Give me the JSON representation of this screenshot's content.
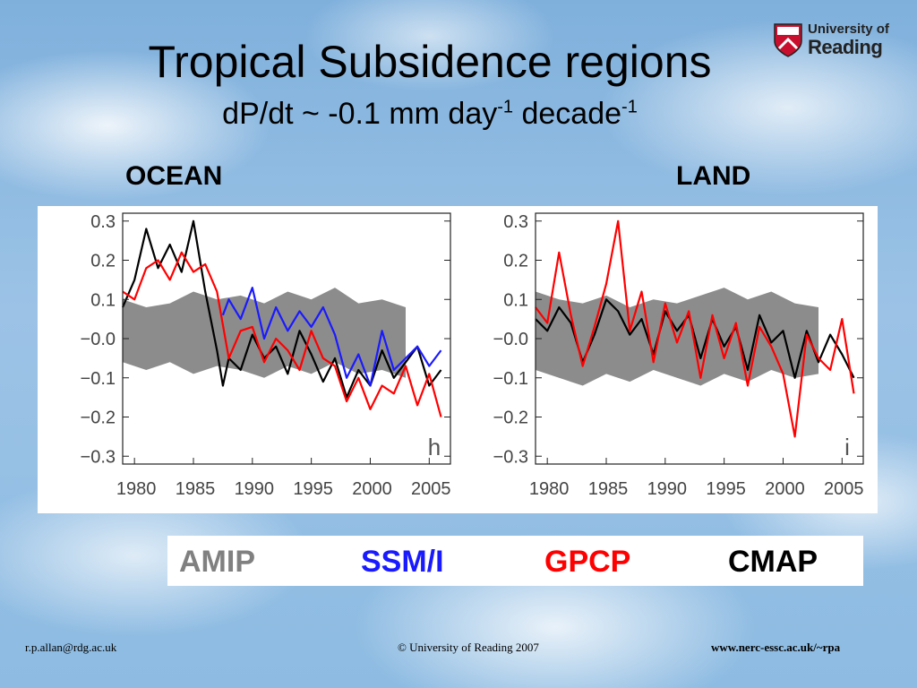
{
  "slide": {
    "title": "Tropical Subsidence regions",
    "subtitle_main": "dP/dt ~ -0.1 mm day",
    "subtitle_exp1": "-1",
    "subtitle_mid": " decade",
    "subtitle_exp2": "-1",
    "logo_line1": "University of",
    "logo_line2": "Reading",
    "footer_left": "r.p.allan@rdg.ac.uk",
    "footer_center": "© University of Reading 2007",
    "footer_right": "www.nerc-essc.ac.uk/~rpa"
  },
  "legend": {
    "items": [
      {
        "label": "AMIP",
        "color": "#808080"
      },
      {
        "label": "SSM/I",
        "color": "#1a1aff"
      },
      {
        "label": "GPCP",
        "color": "#ff0000"
      },
      {
        "label": "CMAP",
        "color": "#000000"
      }
    ]
  },
  "chart_data": [
    {
      "type": "line",
      "region_label": "OCEAN",
      "panel_letter": "h",
      "xlim": [
        1979,
        2006.8
      ],
      "ylim": [
        -0.32,
        0.32
      ],
      "xticks": [
        "1980",
        "1985",
        "1990",
        "1995",
        "2000",
        "2005"
      ],
      "yticks": [
        "0.3",
        "0.2",
        "0.1",
        "−0.0",
        "−0.1",
        "−0.2",
        "−0.3"
      ],
      "ytick_values": [
        0.3,
        0.2,
        0.1,
        0.0,
        -0.1,
        -0.2,
        -0.3
      ],
      "xtick_values": [
        1980,
        1985,
        1990,
        1995,
        2000,
        2005
      ],
      "series": [
        {
          "name": "AMIP",
          "kind": "band",
          "x": [
            1979,
            1981,
            1983,
            1985,
            1987,
            1989,
            1991,
            1993,
            1995,
            1997,
            1999,
            2001,
            2003
          ],
          "upper": [
            0.1,
            0.08,
            0.09,
            0.12,
            0.1,
            0.11,
            0.09,
            0.12,
            0.1,
            0.13,
            0.09,
            0.1,
            0.08
          ],
          "lower": [
            -0.06,
            -0.08,
            -0.06,
            -0.09,
            -0.07,
            -0.08,
            -0.1,
            -0.07,
            -0.09,
            -0.06,
            -0.09,
            -0.08,
            -0.1
          ]
        },
        {
          "name": "CMAP",
          "x": [
            1979,
            1980,
            1981,
            1982,
            1983,
            1984,
            1985,
            1986,
            1987,
            1987.5,
            1988,
            1989,
            1990,
            1991,
            1992,
            1993,
            1994,
            1995,
            1996,
            1997,
            1998,
            1999,
            2000,
            2001,
            2002,
            2003,
            2004,
            2005,
            2006
          ],
          "y": [
            0.08,
            0.15,
            0.28,
            0.18,
            0.24,
            0.17,
            0.3,
            0.12,
            -0.03,
            -0.12,
            -0.05,
            -0.08,
            0.01,
            -0.05,
            -0.02,
            -0.09,
            0.02,
            -0.04,
            -0.11,
            -0.05,
            -0.15,
            -0.08,
            -0.12,
            -0.03,
            -0.1,
            -0.06,
            -0.02,
            -0.12,
            -0.08
          ]
        },
        {
          "name": "GPCP",
          "x": [
            1979,
            1980,
            1981,
            1982,
            1983,
            1984,
            1985,
            1986,
            1987,
            1988,
            1989,
            1990,
            1991,
            1992,
            1993,
            1994,
            1995,
            1996,
            1997,
            1998,
            1999,
            2000,
            2001,
            2002,
            2003,
            2004,
            2005,
            2006
          ],
          "y": [
            0.12,
            0.1,
            0.18,
            0.2,
            0.15,
            0.22,
            0.17,
            0.19,
            0.12,
            -0.05,
            0.02,
            0.03,
            -0.06,
            0.0,
            -0.03,
            -0.08,
            0.02,
            -0.05,
            -0.07,
            -0.16,
            -0.1,
            -0.18,
            -0.12,
            -0.14,
            -0.07,
            -0.17,
            -0.09,
            -0.2
          ]
        },
        {
          "name": "SSM/I",
          "x": [
            1987.5,
            1988,
            1989,
            1990,
            1991,
            1992,
            1993,
            1994,
            1995,
            1996,
            1997,
            1998,
            1999,
            2000,
            2001,
            2002,
            2003,
            2004,
            2005,
            2006
          ],
          "y": [
            0.06,
            0.1,
            0.05,
            0.13,
            0.0,
            0.08,
            0.02,
            0.07,
            0.03,
            0.08,
            0.01,
            -0.1,
            -0.04,
            -0.12,
            0.02,
            -0.08,
            -0.05,
            -0.02,
            -0.07,
            -0.03
          ]
        }
      ]
    },
    {
      "type": "line",
      "region_label": "LAND",
      "panel_letter": "i",
      "xlim": [
        1979,
        2006.8
      ],
      "ylim": [
        -0.32,
        0.32
      ],
      "xticks": [
        "1980",
        "1985",
        "1990",
        "1995",
        "2000",
        "2005"
      ],
      "yticks": [
        "0.3",
        "0.2",
        "0.1",
        "−0.0",
        "−0.1",
        "−0.2",
        "−0.3"
      ],
      "ytick_values": [
        0.3,
        0.2,
        0.1,
        0.0,
        -0.1,
        -0.2,
        -0.3
      ],
      "xtick_values": [
        1980,
        1985,
        1990,
        1995,
        2000,
        2005
      ],
      "series": [
        {
          "name": "AMIP",
          "kind": "band",
          "x": [
            1979,
            1981,
            1983,
            1985,
            1987,
            1989,
            1991,
            1993,
            1995,
            1997,
            1999,
            2001,
            2003
          ],
          "upper": [
            0.12,
            0.1,
            0.09,
            0.11,
            0.08,
            0.1,
            0.09,
            0.11,
            0.13,
            0.1,
            0.12,
            0.09,
            0.08
          ],
          "lower": [
            -0.08,
            -0.1,
            -0.12,
            -0.09,
            -0.11,
            -0.08,
            -0.1,
            -0.12,
            -0.09,
            -0.11,
            -0.08,
            -0.1,
            -0.09
          ]
        },
        {
          "name": "CMAP",
          "x": [
            1979,
            1980,
            1981,
            1982,
            1983,
            1984,
            1985,
            1986,
            1987,
            1988,
            1989,
            1990,
            1991,
            1992,
            1993,
            1994,
            1995,
            1996,
            1997,
            1998,
            1999,
            2000,
            2001,
            2002,
            2003,
            2004,
            2005,
            2006
          ],
          "y": [
            0.05,
            0.02,
            0.08,
            0.04,
            -0.06,
            0.01,
            0.1,
            0.07,
            0.01,
            0.05,
            -0.04,
            0.07,
            0.02,
            0.06,
            -0.05,
            0.05,
            -0.02,
            0.03,
            -0.08,
            0.06,
            -0.01,
            0.02,
            -0.1,
            0.02,
            -0.06,
            0.01,
            -0.04,
            -0.1
          ]
        },
        {
          "name": "GPCP",
          "x": [
            1979,
            1980,
            1981,
            1982,
            1983,
            1984,
            1985,
            1986,
            1987,
            1988,
            1989,
            1990,
            1991,
            1992,
            1993,
            1994,
            1995,
            1996,
            1997,
            1998,
            1999,
            2000,
            2001,
            2002,
            2003,
            2004,
            2005,
            2006
          ],
          "y": [
            0.08,
            0.04,
            0.22,
            0.06,
            -0.07,
            0.03,
            0.14,
            0.3,
            0.02,
            0.12,
            -0.06,
            0.09,
            -0.01,
            0.07,
            -0.1,
            0.06,
            -0.05,
            0.04,
            -0.12,
            0.03,
            -0.02,
            -0.09,
            -0.25,
            0.01,
            -0.05,
            -0.08,
            0.05,
            -0.14
          ]
        }
      ]
    }
  ]
}
